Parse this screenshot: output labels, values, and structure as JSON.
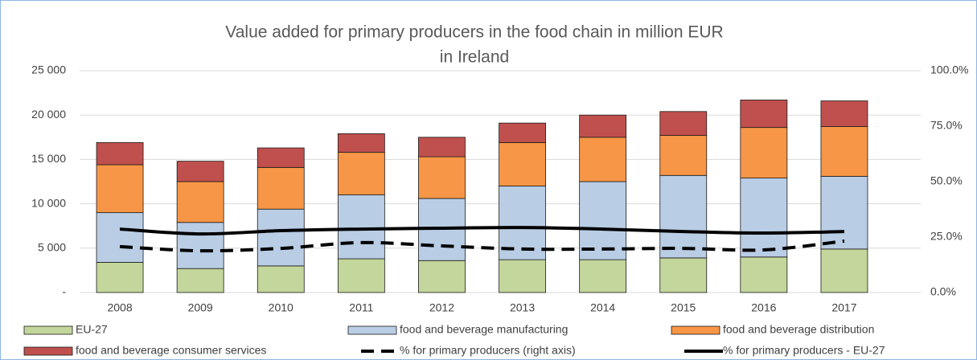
{
  "chart_data": {
    "type": "bar",
    "stacked": true,
    "title": [
      "Value added for primary producers in the food chain in million EUR",
      "in Ireland"
    ],
    "categories": [
      "2008",
      "2009",
      "2010",
      "2011",
      "2012",
      "2013",
      "2014",
      "2015",
      "2016",
      "2017"
    ],
    "series": [
      {
        "name": "EU-27",
        "color": "#c3d69b",
        "values": [
          3400,
          2700,
          3000,
          3800,
          3600,
          3700,
          3700,
          3900,
          4000,
          4900
        ]
      },
      {
        "name": "food and beverage manufacturing",
        "color": "#b9cde5",
        "values": [
          5600,
          5200,
          6400,
          7200,
          7000,
          8300,
          8800,
          9300,
          8900,
          8200
        ]
      },
      {
        "name": "food and beverage distribution",
        "color": "#f79646",
        "values": [
          5400,
          4600,
          4700,
          4800,
          4700,
          4900,
          5000,
          4500,
          5700,
          5600
        ]
      },
      {
        "name": "food and beverage consumer services",
        "color": "#c0504d",
        "values": [
          2500,
          2300,
          2200,
          2100,
          2200,
          2200,
          2500,
          2700,
          3100,
          2900
        ]
      },
      {
        "name": "% for primary producers (right axis)",
        "type": "line",
        "axis": "y2",
        "color": "#000000",
        "dashed": true,
        "values": [
          20.7,
          18.8,
          19.9,
          22.5,
          21.0,
          19.6,
          19.6,
          19.9,
          19.2,
          23.2
        ]
      },
      {
        "name": "% for primary producers - EU-27",
        "type": "line",
        "axis": "y2",
        "color": "#000000",
        "dashed": false,
        "values": [
          28.6,
          26.4,
          27.9,
          28.6,
          29.0,
          29.3,
          28.6,
          27.5,
          26.8,
          27.5
        ]
      }
    ],
    "ylim": [
      0,
      25000
    ],
    "yticks": [
      {
        "value": 0,
        "label": "-"
      },
      {
        "value": 5000,
        "label": "5 000"
      },
      {
        "value": 10000,
        "label": "10 000"
      },
      {
        "value": 15000,
        "label": "15 000"
      },
      {
        "value": 20000,
        "label": "20 000"
      },
      {
        "value": 25000,
        "label": "25 000"
      }
    ],
    "y2lim": [
      0,
      100
    ],
    "y2ticks": [
      {
        "value": 0,
        "label": "0.0%"
      },
      {
        "value": 25,
        "label": "25.0%"
      },
      {
        "value": 50,
        "label": "50.0%"
      },
      {
        "value": 75,
        "label": "75.0%"
      },
      {
        "value": 100,
        "label": "100.0%"
      }
    ],
    "grid": true,
    "legend": "bottom"
  }
}
